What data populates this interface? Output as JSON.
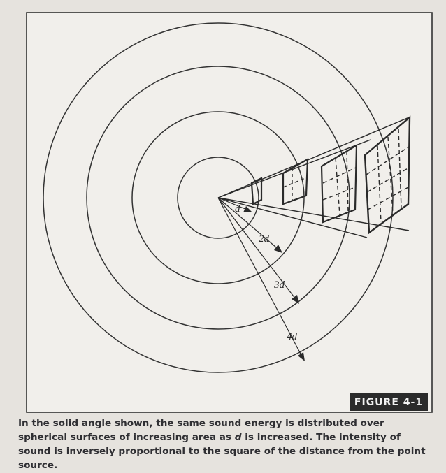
{
  "figure": {
    "labels": [
      "d",
      "2d",
      "3d",
      "4d"
    ],
    "figure_label": "FIGURE 4-1"
  },
  "caption": {
    "parts": [
      "In the solid angle shown, the same sound energy is distributed over spherical surfaces of increasing area as ",
      "d",
      " is increased. The intensity of sound is inversely proportional to the square of the distance from the point source."
    ]
  }
}
